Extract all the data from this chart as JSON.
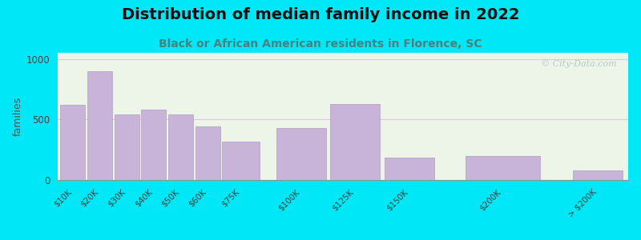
{
  "title": "Distribution of median family income in 2022",
  "subtitle": "Black or African American residents in Florence, SC",
  "categories": [
    "$10K",
    "$20K",
    "$30K",
    "$40K",
    "$50K",
    "$60K",
    "$75K",
    "$100K",
    "$125K",
    "$150K",
    "$200K",
    "> $200K"
  ],
  "values": [
    620,
    900,
    540,
    580,
    540,
    440,
    315,
    430,
    630,
    185,
    195,
    80
  ],
  "x_positions": [
    0,
    1,
    2,
    3,
    4,
    5,
    6,
    8,
    10,
    12,
    15,
    19
  ],
  "bar_widths": [
    1,
    1,
    1,
    1,
    1,
    1,
    1.5,
    2,
    2,
    2,
    3,
    2
  ],
  "bar_color": "#c8b4d8",
  "bar_edge_color": "#b09ec0",
  "background_outer": "#00e8f8",
  "background_inner": "#edf5e8",
  "title_fontsize": 14,
  "subtitle_fontsize": 10,
  "subtitle_color": "#4a8080",
  "ylabel": "families",
  "ylabel_color": "#505050",
  "yticks": [
    0,
    500,
    1000
  ],
  "ylim": [
    0,
    1050
  ],
  "grid_color": "#ddc8e0",
  "watermark_text": "© City-Data.com",
  "watermark_color": "#a8bcc8"
}
